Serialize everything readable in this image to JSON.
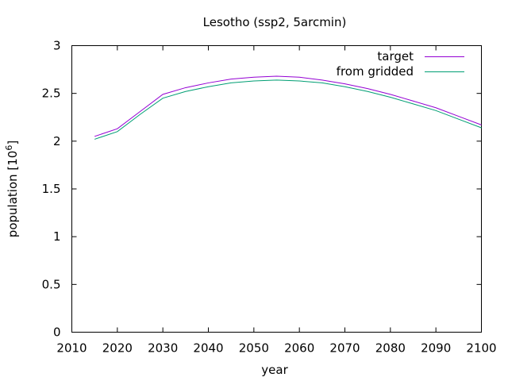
{
  "chart_data": {
    "type": "line",
    "title": "Lesotho (ssp2, 5arcmin)",
    "xlabel": "year",
    "ylabel": "population [10",
    "ylabel_superscript": "6",
    "ylabel_suffix": "]",
    "xlim": [
      2010,
      2100
    ],
    "ylim": [
      0,
      3
    ],
    "xticks": [
      "2010",
      "2020",
      "2030",
      "2040",
      "2050",
      "2060",
      "2070",
      "2080",
      "2090",
      "2100"
    ],
    "yticks": [
      "0",
      "0.5",
      "1",
      "1.5",
      "2",
      "2.5",
      "3"
    ],
    "grid": false,
    "legend_placement": "top-right",
    "series": [
      {
        "name": "target",
        "color": "#9400d3",
        "x": [
          2015,
          2020,
          2025,
          2030,
          2035,
          2040,
          2045,
          2050,
          2055,
          2060,
          2065,
          2070,
          2075,
          2080,
          2085,
          2090,
          2095,
          2100
        ],
        "values": [
          2.05,
          2.13,
          2.31,
          2.49,
          2.56,
          2.61,
          2.65,
          2.67,
          2.68,
          2.67,
          2.64,
          2.6,
          2.55,
          2.49,
          2.42,
          2.35,
          2.26,
          2.17
        ]
      },
      {
        "name": "from gridded",
        "color": "#009e73",
        "x": [
          2015,
          2020,
          2025,
          2030,
          2035,
          2040,
          2045,
          2050,
          2055,
          2060,
          2065,
          2070,
          2075,
          2080,
          2085,
          2090,
          2095,
          2100
        ],
        "values": [
          2.02,
          2.1,
          2.28,
          2.45,
          2.52,
          2.57,
          2.61,
          2.63,
          2.64,
          2.63,
          2.61,
          2.57,
          2.52,
          2.46,
          2.39,
          2.32,
          2.23,
          2.14
        ]
      }
    ]
  }
}
